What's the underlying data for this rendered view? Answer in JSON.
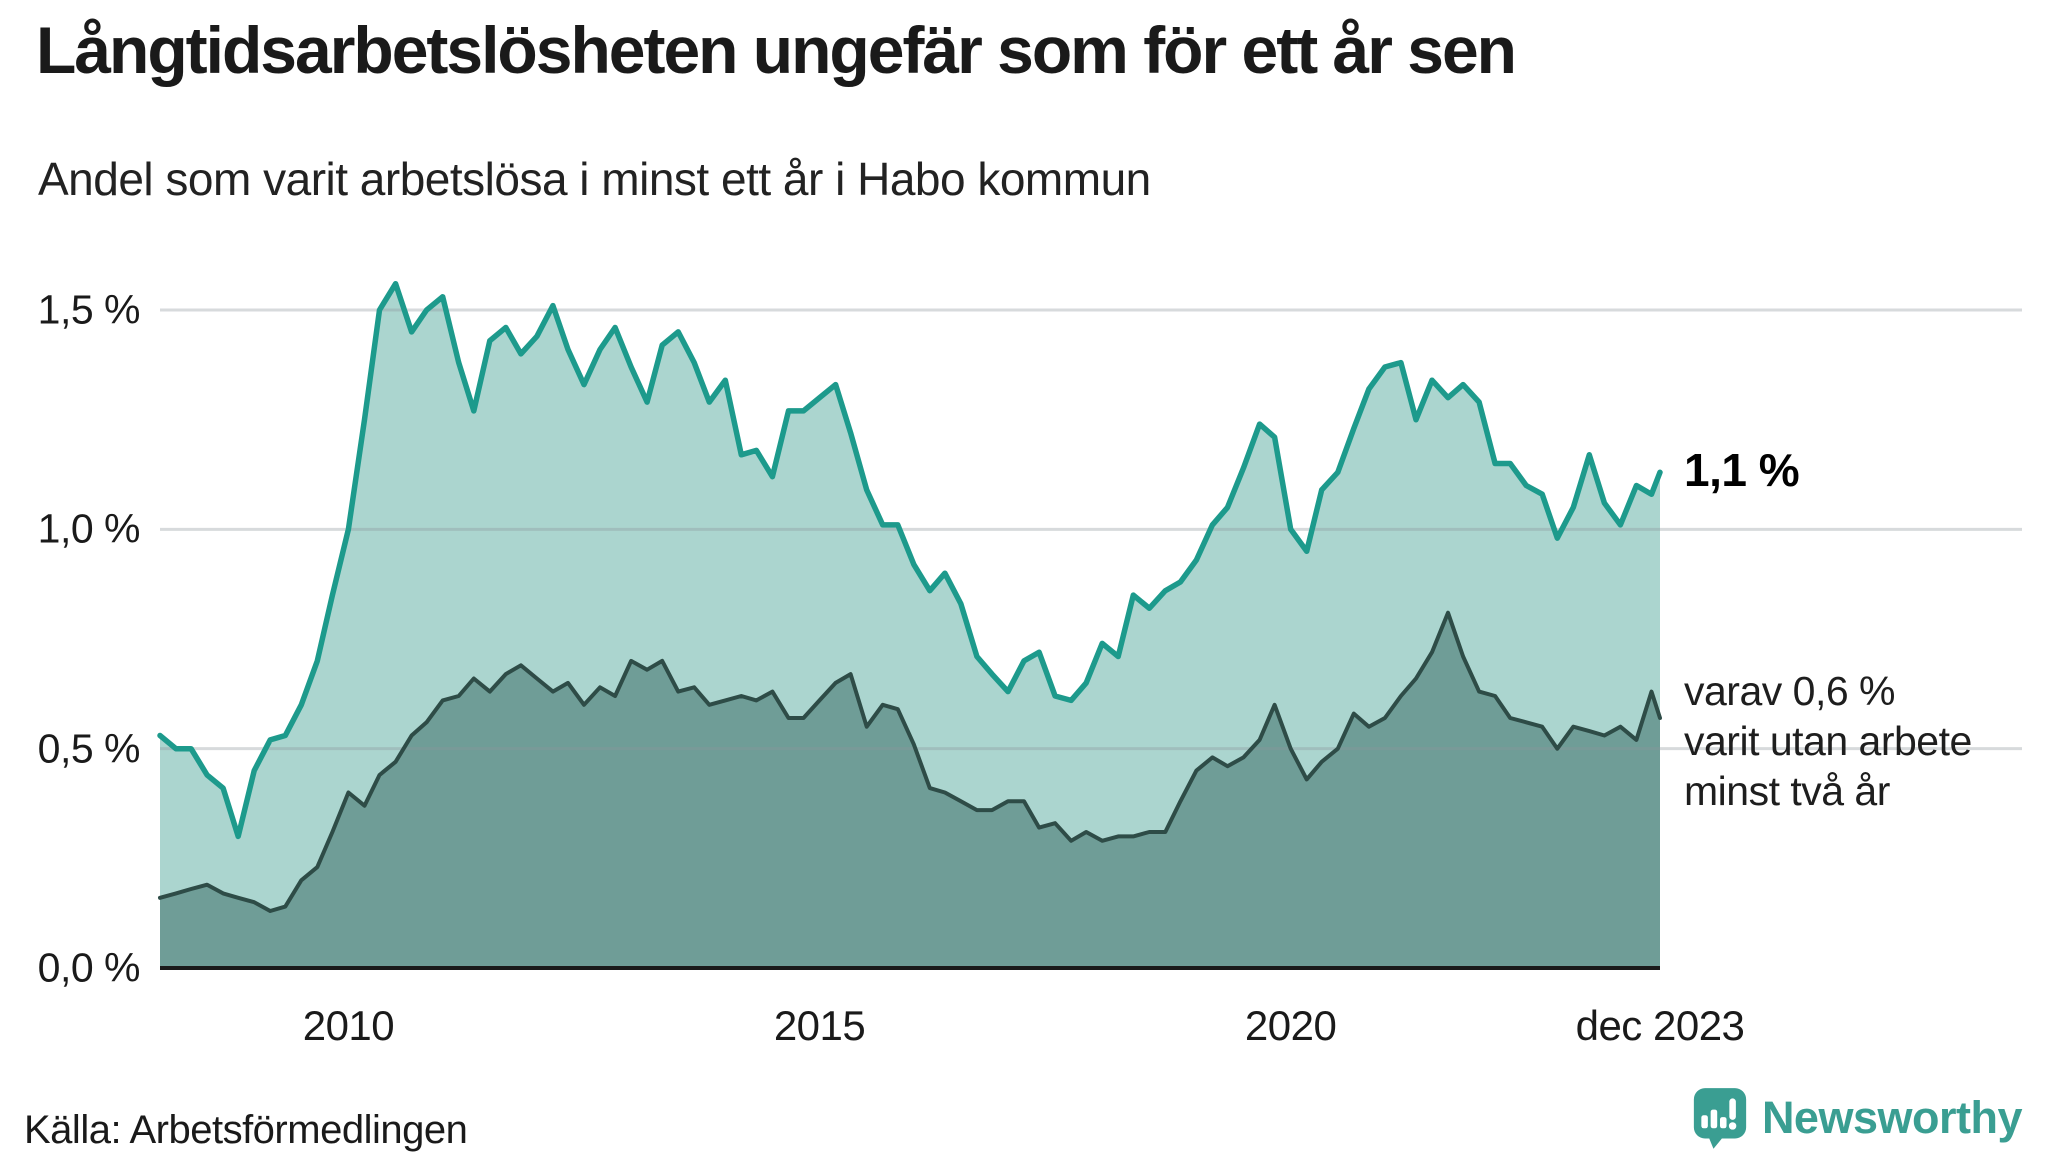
{
  "header": {
    "title": "Långtidsarbetslösheten ungefär som för ett år sen",
    "subtitle": "Andel som varit arbetslösa i minst ett år i Habo kommun"
  },
  "annotations": {
    "latest_value": "1,1 %",
    "secondary_line1": "varav 0,6 %",
    "secondary_line2": "varit utan arbete",
    "secondary_line3": "minst två år"
  },
  "source": {
    "label": "Källa: Arbetsförmedlingen"
  },
  "branding": {
    "name": "Newsworthy",
    "brand_color": "#3a9e92"
  },
  "colors": {
    "series1_line": "#1d9a8c",
    "series1_fill": "#abd5cf",
    "series2_line": "#2e4c47",
    "series2_fill": "#6f9d97",
    "gridline": "rgba(140,150,155,0.35)",
    "baseline": "#1a1a1a",
    "text": "#1a1a1a"
  },
  "chart_data": {
    "type": "area",
    "title": "Långtidsarbetslösheten ungefär som för ett år sen",
    "subtitle": "Andel som varit arbetslösa i minst ett år i Habo kommun",
    "x_unit": "decimal year (monthly data, jan 2008 – dec 2023)",
    "ylabel": "",
    "xlabel": "",
    "ylim": [
      0,
      1.71
    ],
    "grid": true,
    "legend": "annotations at line ends",
    "y_ticks": [
      {
        "value": 0.0,
        "label": "0,0 %"
      },
      {
        "value": 0.5,
        "label": "0,5 %"
      },
      {
        "value": 1.0,
        "label": "1,0 %"
      },
      {
        "value": 1.5,
        "label": "1,5 %"
      }
    ],
    "x_ticks": [
      {
        "value": 2010,
        "label": "2010"
      },
      {
        "value": 2015,
        "label": "2015"
      },
      {
        "value": 2020,
        "label": "2020"
      },
      {
        "value": 2023.92,
        "label": "dec 2023"
      }
    ],
    "x": [
      2008,
      2008.17,
      2008.33,
      2008.5,
      2008.67,
      2008.83,
      2009,
      2009.17,
      2009.33,
      2009.5,
      2009.67,
      2009.83,
      2010,
      2010.17,
      2010.33,
      2010.5,
      2010.67,
      2010.83,
      2011,
      2011.17,
      2011.33,
      2011.5,
      2011.67,
      2011.83,
      2012,
      2012.17,
      2012.33,
      2012.5,
      2012.67,
      2012.83,
      2013,
      2013.17,
      2013.33,
      2013.5,
      2013.67,
      2013.83,
      2014,
      2014.17,
      2014.33,
      2014.5,
      2014.67,
      2014.83,
      2015,
      2015.17,
      2015.33,
      2015.5,
      2015.67,
      2015.83,
      2016,
      2016.17,
      2016.33,
      2016.5,
      2016.67,
      2016.83,
      2017,
      2017.17,
      2017.33,
      2017.5,
      2017.67,
      2017.83,
      2018,
      2018.17,
      2018.33,
      2018.5,
      2018.67,
      2018.83,
      2019,
      2019.17,
      2019.33,
      2019.5,
      2019.67,
      2019.83,
      2020,
      2020.17,
      2020.33,
      2020.5,
      2020.67,
      2020.83,
      2021,
      2021.17,
      2021.33,
      2021.5,
      2021.67,
      2021.83,
      2022,
      2022.17,
      2022.33,
      2022.5,
      2022.67,
      2022.83,
      2023,
      2023.17,
      2023.33,
      2023.5,
      2023.67,
      2023.83,
      2023.92
    ],
    "series": [
      {
        "name": "Andel arbetslösa minst ett år",
        "end_label": "1,1 %",
        "values": [
          0.53,
          0.5,
          0.5,
          0.44,
          0.41,
          0.3,
          0.45,
          0.52,
          0.53,
          0.6,
          0.7,
          0.85,
          1.0,
          1.25,
          1.5,
          1.56,
          1.45,
          1.5,
          1.53,
          1.38,
          1.27,
          1.43,
          1.46,
          1.4,
          1.44,
          1.51,
          1.41,
          1.33,
          1.41,
          1.46,
          1.37,
          1.29,
          1.42,
          1.45,
          1.38,
          1.29,
          1.34,
          1.17,
          1.18,
          1.12,
          1.27,
          1.27,
          1.3,
          1.33,
          1.22,
          1.09,
          1.01,
          1.01,
          0.92,
          0.86,
          0.9,
          0.83,
          0.71,
          0.67,
          0.63,
          0.7,
          0.72,
          0.62,
          0.61,
          0.65,
          0.74,
          0.71,
          0.85,
          0.82,
          0.86,
          0.88,
          0.93,
          1.01,
          1.05,
          1.14,
          1.24,
          1.21,
          1.0,
          0.95,
          1.09,
          1.13,
          1.23,
          1.32,
          1.37,
          1.38,
          1.25,
          1.34,
          1.3,
          1.33,
          1.29,
          1.15,
          1.15,
          1.1,
          1.08,
          0.98,
          1.05,
          1.17,
          1.06,
          1.01,
          1.1,
          1.08,
          1.13
        ]
      },
      {
        "name": "varav utan arbete minst två år",
        "end_label": "varav 0,6 % varit utan arbete minst två år",
        "values": [
          0.16,
          0.17,
          0.18,
          0.19,
          0.17,
          0.16,
          0.15,
          0.13,
          0.14,
          0.2,
          0.23,
          0.31,
          0.4,
          0.37,
          0.44,
          0.47,
          0.53,
          0.56,
          0.61,
          0.62,
          0.66,
          0.63,
          0.67,
          0.69,
          0.66,
          0.63,
          0.65,
          0.6,
          0.64,
          0.62,
          0.7,
          0.68,
          0.7,
          0.63,
          0.64,
          0.6,
          0.61,
          0.62,
          0.61,
          0.63,
          0.57,
          0.57,
          0.61,
          0.65,
          0.67,
          0.55,
          0.6,
          0.59,
          0.51,
          0.41,
          0.4,
          0.38,
          0.36,
          0.36,
          0.38,
          0.38,
          0.32,
          0.33,
          0.29,
          0.31,
          0.29,
          0.3,
          0.3,
          0.31,
          0.31,
          0.38,
          0.45,
          0.48,
          0.46,
          0.48,
          0.52,
          0.6,
          0.5,
          0.43,
          0.47,
          0.5,
          0.58,
          0.55,
          0.57,
          0.62,
          0.66,
          0.72,
          0.81,
          0.71,
          0.63,
          0.62,
          0.57,
          0.56,
          0.55,
          0.5,
          0.55,
          0.54,
          0.53,
          0.55,
          0.52,
          0.63,
          0.57
        ]
      }
    ]
  }
}
